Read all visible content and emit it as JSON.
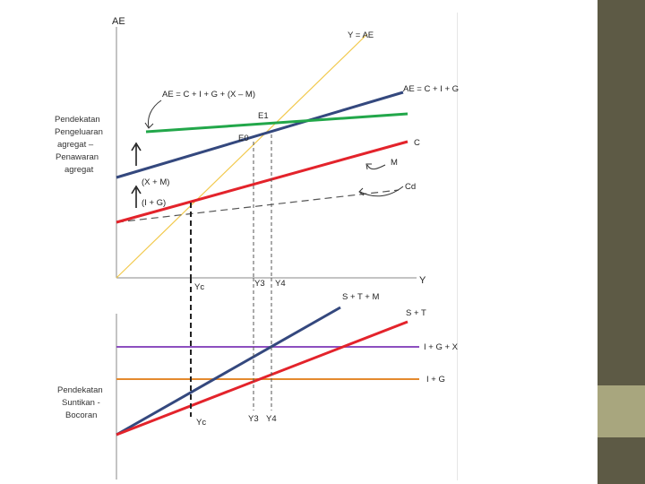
{
  "colors": {
    "sidebar": "#5d5a45",
    "sidebar_accent": "#a8a67e",
    "ae_line": "#34487e",
    "c_line": "#e3232b",
    "x_m_line": "#22a74a",
    "diagonal": "#f2c94c",
    "cd_line": "#555555",
    "igx_line": "#8d4fbf",
    "ig_line": "#e48a2e"
  },
  "top": {
    "y_axis_label": "AE",
    "x_axis_label": "Y",
    "side_label": [
      "Pendekatan",
      "Pengeluaran",
      "agregat –",
      "Penawaran",
      "agregat"
    ],
    "diagonal_label": "Y = AE",
    "ae_label": "AE = C + I + G",
    "aexm_label": "AE = C + I + G + (X – M)",
    "c_label": "C",
    "m_label": "M",
    "cd_label": "Cd",
    "e1_label": "E1",
    "e0_label": "E0",
    "xm_shift_label": "(X + M)",
    "ig_shift_label": "(I + G)",
    "yc_label": "Yc",
    "y3_label": "Y3",
    "y4_label": "Y4"
  },
  "bottom": {
    "side_label": [
      "Pendekatan",
      "Suntikan -",
      "Bocoran"
    ],
    "stm_label": "S + T + M",
    "st_label": "S + T",
    "igx_label": "I + G + X",
    "ig_label": "I + G",
    "yc_label": "Yc",
    "y3_label": "Y3",
    "y4_label": "Y4"
  }
}
